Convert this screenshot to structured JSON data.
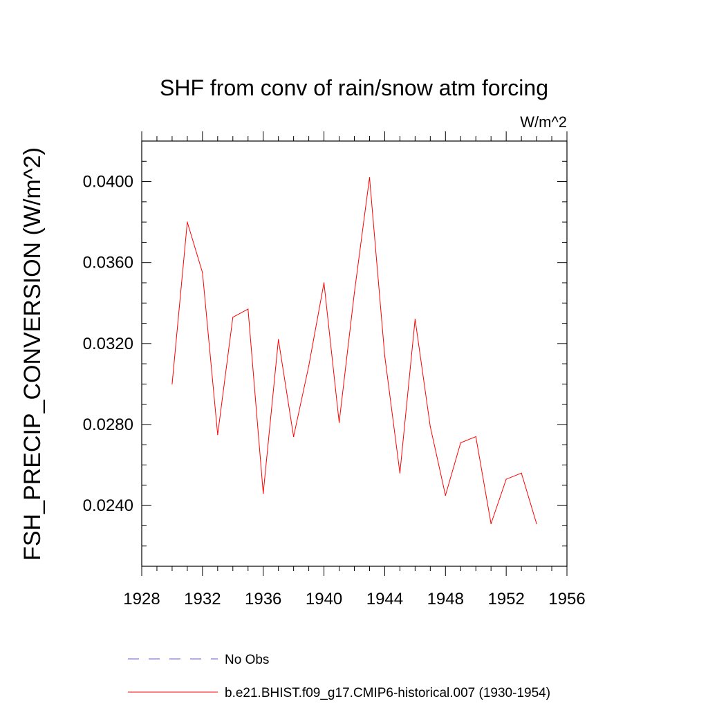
{
  "chart_data": {
    "type": "line",
    "title": "SHF from conv of rain/snow atm forcing",
    "units": "W/m^2",
    "xlabel": "",
    "ylabel": "FSH_PRECIP_CONVERSION  (W/m^2)",
    "xlim": [
      1928,
      1956
    ],
    "ylim": [
      0.021,
      0.042
    ],
    "x_major_ticks": [
      1928,
      1932,
      1936,
      1940,
      1944,
      1948,
      1952,
      1956
    ],
    "x_tick_labels": [
      "1928",
      "1932",
      "1936",
      "1940",
      "1944",
      "1948",
      "1952",
      "1956"
    ],
    "y_major_ticks": [
      0.024,
      0.028,
      0.032,
      0.036,
      0.04
    ],
    "y_tick_labels": [
      "0.0240",
      "0.0280",
      "0.0320",
      "0.0360",
      "0.0400"
    ],
    "x_minor_step": 1,
    "y_minor_step": 0.001,
    "grid": false,
    "legend_position": "bottom",
    "series": [
      {
        "name": "b.e21.BHIST.f09_g17.CMIP6-historical.007 (1930-1954)",
        "color": "#ff0000",
        "style": "solid",
        "x": [
          1930,
          1931,
          1932,
          1933,
          1934,
          1935,
          1936,
          1937,
          1938,
          1939,
          1940,
          1941,
          1942,
          1943,
          1944,
          1945,
          1946,
          1947,
          1948,
          1949,
          1950,
          1951,
          1952,
          1953,
          1954
        ],
        "values": [
          0.03,
          0.038,
          0.0355,
          0.0275,
          0.0333,
          0.0337,
          0.0246,
          0.0322,
          0.0274,
          0.0309,
          0.035,
          0.0281,
          0.0345,
          0.0402,
          0.0314,
          0.0256,
          0.0332,
          0.0279,
          0.0245,
          0.0271,
          0.0274,
          0.0231,
          0.0253,
          0.0256,
          0.0231
        ]
      }
    ],
    "legend": [
      {
        "label": "No Obs",
        "color": "#6a5acd",
        "style": "dashed"
      },
      {
        "label": "b.e21.BHIST.f09_g17.CMIP6-historical.007 (1930-1954)",
        "color": "#ff0000",
        "style": "solid"
      }
    ]
  }
}
